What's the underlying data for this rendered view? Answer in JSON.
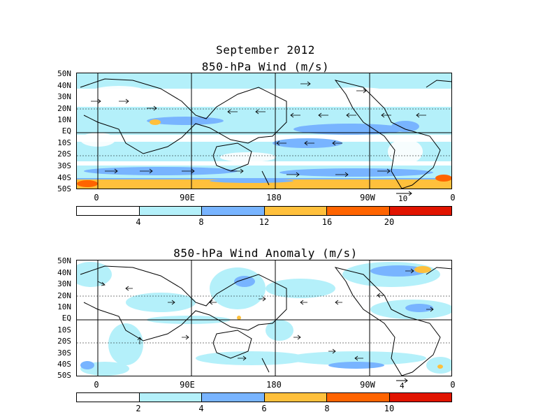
{
  "header": {
    "title": "September 2012"
  },
  "panel1": {
    "title": "850-hPa Wind (m/s)",
    "lat_labels": [
      "50N",
      "40N",
      "30N",
      "20N",
      "10N",
      "EQ",
      "10S",
      "20S",
      "30S",
      "40S",
      "50S"
    ],
    "lon_labels": [
      "0",
      "90E",
      "180",
      "90W",
      "0"
    ],
    "ref_vector": "10",
    "colorbar": {
      "colors": [
        "#ffffff",
        "#b4f0fa",
        "#78b4ff",
        "#ffc03c",
        "#ff6400",
        "#e11400"
      ],
      "ticks": [
        "4",
        "8",
        "12",
        "16",
        "20"
      ]
    }
  },
  "panel2": {
    "title": "850-hPa Wind Anomaly (m/s)",
    "lat_labels": [
      "50N",
      "40N",
      "30N",
      "20N",
      "10N",
      "EQ",
      "10S",
      "20S",
      "30S",
      "40S",
      "50S"
    ],
    "lon_labels": [
      "0",
      "90E",
      "180",
      "90W",
      "0"
    ],
    "ref_vector": "4",
    "colorbar": {
      "colors": [
        "#ffffff",
        "#b4f0fa",
        "#78b4ff",
        "#ffc03c",
        "#ff6400",
        "#e11400"
      ],
      "ticks": [
        "2",
        "4",
        "6",
        "8",
        "10"
      ]
    }
  }
}
